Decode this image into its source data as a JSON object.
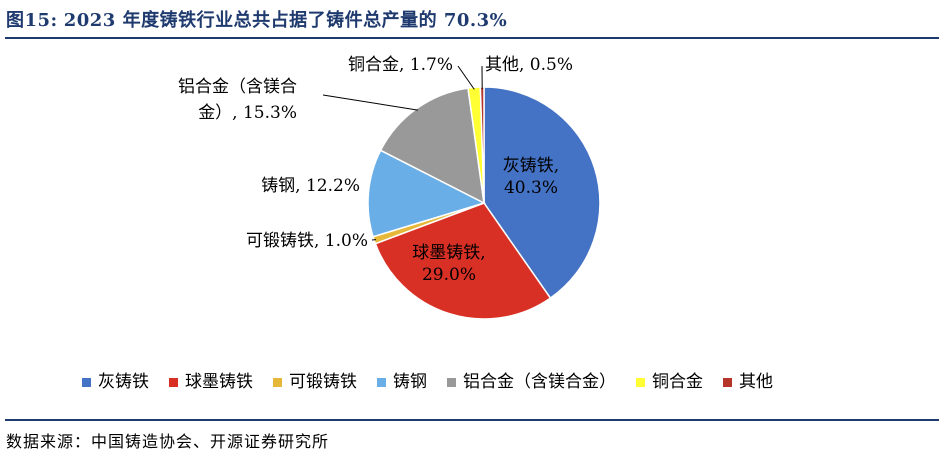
{
  "figure": {
    "prefix": "图15:",
    "title": "2023 年度铸铁行业总共占据了铸件总产量的 70.3%"
  },
  "source": "数据来源：中国铸造协会、开源证券研究所",
  "chart_data": {
    "type": "pie",
    "categories": [
      "灰铸铁",
      "球墨铸铁",
      "可锻铸铁",
      "铸钢",
      "铝合金（含镁合金）",
      "铜合金",
      "其他"
    ],
    "values": [
      40.3,
      29.0,
      1.0,
      12.2,
      15.3,
      1.7,
      0.5
    ],
    "colors": [
      "#4472c4",
      "#d93025",
      "#e6b83a",
      "#6aaee8",
      "#999999",
      "#ffff33",
      "#b5352a"
    ],
    "label_texts": {
      "灰铸铁": [
        "灰铸铁,",
        "40.3%"
      ],
      "球墨铸铁": [
        "球墨铸铁,",
        "29.0%"
      ],
      "可锻铸铁": [
        "可锻铸铁, 1.0%"
      ],
      "铸钢": [
        "铸钢, 12.2%"
      ],
      "铝合金（含镁合金）": [
        "铝合金（含镁合",
        "金）, 15.3%"
      ],
      "铜合金": [
        "铜合金, 1.7%"
      ],
      "其他": [
        "其他, 0.5%"
      ]
    },
    "legend_position": "bottom"
  }
}
